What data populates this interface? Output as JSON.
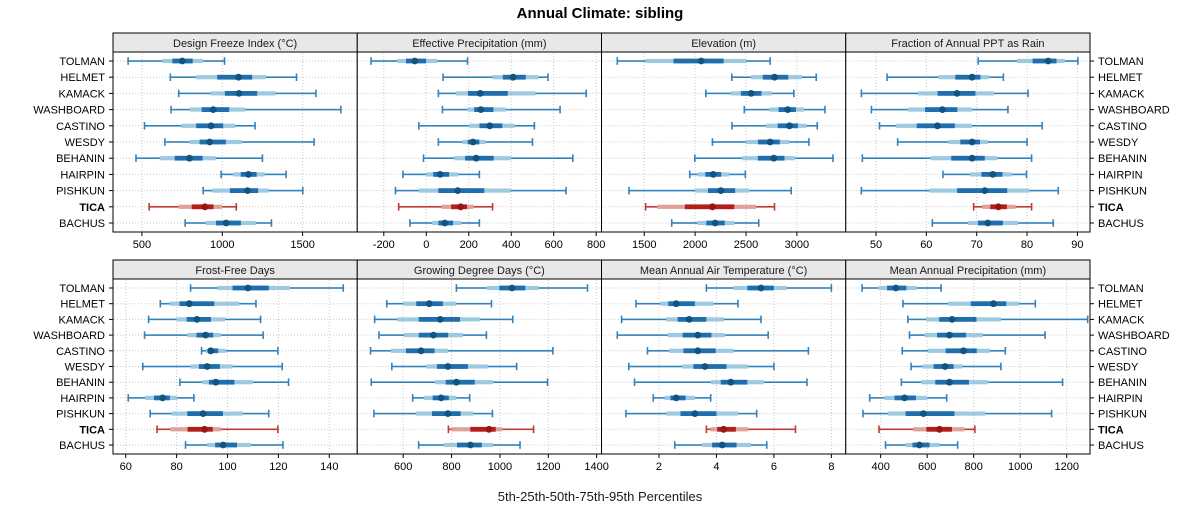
{
  "chart_data": {
    "type": "dot-interval-lattice",
    "title": "Annual Climate: sibling",
    "xlabel": "5th-25th-50th-75th-95th Percentiles",
    "percentiles": [
      5,
      25,
      50,
      75,
      95
    ],
    "legend_position": "none",
    "grid": "dotted",
    "sites": [
      "TOLMAN",
      "HELMET",
      "KAMACK",
      "WASHBOARD",
      "CASTINO",
      "WESDY",
      "BEHANIN",
      "HAIRPIN",
      "PISHKUN",
      "TICA",
      "BACHUS"
    ],
    "highlight_site": "TICA",
    "colors": {
      "blue_whisker": "#3182bd",
      "blue_light": "#9ecae1",
      "blue_bar": "#1f6fae",
      "blue_dot": "#14537e",
      "red_whisker": "#bf3a30",
      "red_light": "#dfa29b",
      "red_bar": "#b01f1a",
      "red_dot": "#991511",
      "strip_bg": "#e8e8e8",
      "panel_border": "#000000",
      "grid_line": "#c9c9c9",
      "text": "#000000"
    },
    "panels": [
      {
        "title": "Design Freeze Index (°C)",
        "xlim": [
          320,
          1840
        ],
        "ticks": [
          500,
          1000,
          1500
        ],
        "values": {
          "TOLMAN": [
            414,
            628,
            751,
            881,
            1014
          ],
          "HELMET": [
            677,
            836,
            1101,
            1271,
            1462
          ],
          "KAMACK": [
            729,
            929,
            1104,
            1331,
            1583
          ],
          "WASHBOARD": [
            681,
            800,
            944,
            1142,
            1738
          ],
          "CASTINO": [
            516,
            745,
            930,
            1081,
            1204
          ],
          "WESDY": [
            643,
            796,
            922,
            1122,
            1571
          ],
          "BEHANIN": [
            463,
            612,
            796,
            959,
            1250
          ],
          "HAIRPIN": [
            993,
            1067,
            1163,
            1265,
            1397
          ],
          "PISHKUN": [
            881,
            938,
            1157,
            1289,
            1501
          ],
          "TICA": [
            545,
            728,
            892,
            999,
            1087
          ],
          "BACHUS": [
            769,
            898,
            1024,
            1208,
            1306
          ]
        }
      },
      {
        "title": "Effective Precipitation (mm)",
        "xlim": [
          -325,
          825
        ],
        "ticks": [
          -200,
          0,
          200,
          400,
          600,
          800
        ],
        "values": {
          "TOLMAN": [
            -260,
            -137,
            -54,
            52,
            194
          ],
          "HELMET": [
            79,
            312,
            409,
            528,
            573
          ],
          "KAMACK": [
            57,
            139,
            254,
            513,
            753
          ],
          "WASHBOARD": [
            76,
            194,
            257,
            375,
            630
          ],
          "CASTINO": [
            -35,
            202,
            299,
            417,
            509
          ],
          "WESDY": [
            57,
            170,
            220,
            280,
            500
          ],
          "BEHANIN": [
            -13,
            131,
            235,
            400,
            690
          ],
          "HAIRPIN": [
            -110,
            0,
            65,
            150,
            250
          ],
          "PISHKUN": [
            -145,
            -35,
            148,
            398,
            658
          ],
          "TICA": [
            -130,
            72,
            162,
            222,
            312
          ],
          "BACHUS": [
            -77,
            28,
            87,
            165,
            250
          ]
        }
      },
      {
        "title": "Elevation (m)",
        "xlim": [
          1080,
          3480
        ],
        "ticks": [
          1500,
          2000,
          2500,
          3000
        ],
        "values": {
          "TOLMAN": [
            1235,
            1515,
            2060,
            2500,
            2737
          ],
          "HELMET": [
            2360,
            2550,
            2780,
            3050,
            3190
          ],
          "KAMACK": [
            2105,
            2350,
            2550,
            2753,
            2970
          ],
          "WASHBOARD": [
            2483,
            2730,
            2910,
            3070,
            3276
          ],
          "CASTINO": [
            2362,
            2697,
            2927,
            3092,
            3200
          ],
          "WESDY": [
            2170,
            2500,
            2737,
            2927,
            3118
          ],
          "BEHANIN": [
            1997,
            2460,
            2773,
            2983,
            3355
          ],
          "HAIRPIN": [
            1947,
            2023,
            2178,
            2335,
            2493
          ],
          "PISHKUN": [
            1350,
            2000,
            2253,
            2533,
            2944
          ],
          "TICA": [
            1513,
            1628,
            2170,
            2600,
            2780
          ],
          "BACHUS": [
            1770,
            2023,
            2197,
            2385,
            2625
          ]
        }
      },
      {
        "title": "Fraction of Annual PPT as Rain",
        "xlim": [
          44,
          92.5
        ],
        "ticks": [
          50,
          60,
          70,
          80,
          90
        ],
        "values": {
          "TOLMAN": [
            70.3,
            78.0,
            84.2,
            87.5,
            90.1
          ],
          "HELMET": [
            52.2,
            62.4,
            69.1,
            72.4,
            75.3
          ],
          "KAMACK": [
            47.1,
            58.4,
            66.1,
            73.4,
            80.2
          ],
          "WASHBOARD": [
            49.1,
            56.3,
            63.2,
            69.1,
            76.2
          ],
          "CASTINO": [
            50.7,
            54.0,
            62.2,
            69.1,
            83.0
          ],
          "WESDY": [
            54.3,
            64.4,
            69.1,
            72.2,
            80.0
          ],
          "BEHANIN": [
            47.3,
            60.8,
            69.1,
            74.1,
            80.9
          ],
          "HAIRPIN": [
            63.3,
            68.7,
            73.2,
            77.0,
            79.9
          ],
          "PISHKUN": [
            47.1,
            60.6,
            71.6,
            80.5,
            86.2
          ],
          "TICA": [
            69.4,
            71.1,
            74.3,
            77.7,
            80.9
          ],
          "BACHUS": [
            61.2,
            68.3,
            72.2,
            78.2,
            85.2
          ]
        }
      },
      {
        "title": "Frost-Free Days",
        "xlim": [
          55,
          151
        ],
        "ticks": [
          60,
          80,
          100,
          120,
          140
        ],
        "values": {
          "TOLMAN": [
            85.5,
            96.0,
            108.0,
            124.5,
            145.5
          ],
          "HELMET": [
            73.6,
            77.3,
            85.0,
            104.6,
            111.2
          ],
          "KAMACK": [
            69.0,
            80.0,
            88.0,
            99.0,
            113.0
          ],
          "WASHBOARD": [
            67.4,
            84.2,
            91.4,
            97.4,
            114.0
          ],
          "CASTINO": [
            89.8,
            91.4,
            93.4,
            99.3,
            119.8
          ],
          "WESDY": [
            66.7,
            85.5,
            92.0,
            102.0,
            121.5
          ],
          "BEHANIN": [
            81.3,
            90.0,
            95.4,
            110.0,
            124.0
          ],
          "HAIRPIN": [
            61.0,
            67.7,
            74.5,
            80.2,
            86.8
          ],
          "PISHKUN": [
            69.6,
            78.0,
            90.4,
            106.0,
            116.2
          ],
          "TICA": [
            72.3,
            77.6,
            91.0,
            97.4,
            119.8
          ],
          "BACHUS": [
            83.5,
            92.0,
            98.3,
            109.2,
            121.8
          ]
        }
      },
      {
        "title": "Growing Degree Days (°C)",
        "xlim": [
          410,
          1420
        ],
        "ticks": [
          600,
          800,
          1000,
          1200,
          1400
        ],
        "values": {
          "TOLMAN": [
            820,
            945,
            1050,
            1160,
            1362
          ],
          "HELMET": [
            532,
            600,
            708,
            820,
            965
          ],
          "KAMACK": [
            482,
            576,
            753,
            917,
            1053
          ],
          "WASHBOARD": [
            500,
            604,
            725,
            847,
            944
          ],
          "CASTINO": [
            465,
            549,
            674,
            785,
            1219
          ],
          "WESDY": [
            553,
            694,
            785,
            950,
            1069
          ],
          "BEHANIN": [
            468,
            732,
            820,
            972,
            1197
          ],
          "HAIRPIN": [
            639,
            687,
            757,
            820,
            875
          ],
          "PISHKUN": [
            479,
            653,
            785,
            890,
            969
          ],
          "TICA": [
            787,
            800,
            955,
            1010,
            1139
          ],
          "BACHUS": [
            664,
            767,
            878,
            972,
            1083
          ]
        }
      },
      {
        "title": "Mean Annual Air Temperature (°C)",
        "xlim": [
          0,
          8.5
        ],
        "ticks": [
          2,
          4,
          6,
          8
        ],
        "values": {
          "TOLMAN": [
            3.65,
            4.6,
            5.55,
            6.45,
            8.0
          ],
          "HELMET": [
            1.2,
            2.05,
            2.6,
            3.9,
            4.75
          ],
          "KAMACK": [
            0.7,
            2.25,
            3.05,
            4.25,
            5.55
          ],
          "WASHBOARD": [
            0.55,
            2.3,
            3.35,
            4.3,
            5.8
          ],
          "CASTINO": [
            1.6,
            2.35,
            3.35,
            4.6,
            7.2
          ],
          "WESDY": [
            0.95,
            2.8,
            3.6,
            5.1,
            6.0
          ],
          "BEHANIN": [
            1.15,
            3.8,
            4.5,
            5.65,
            7.15
          ],
          "HAIRPIN": [
            1.8,
            2.2,
            2.6,
            3.25,
            3.8
          ],
          "PISHKUN": [
            0.85,
            2.25,
            3.25,
            4.75,
            5.4
          ],
          "TICA": [
            3.65,
            3.8,
            4.25,
            5.1,
            6.75
          ],
          "BACHUS": [
            2.55,
            3.5,
            4.2,
            5.2,
            5.75
          ]
        }
      },
      {
        "title": "Mean Annual Precipitation (mm)",
        "xlim": [
          250,
          1300
        ],
        "ticks": [
          400,
          600,
          800,
          1000,
          1200
        ],
        "values": {
          "TOLMAN": [
            320,
            390,
            465,
            556,
            660
          ],
          "HELMET": [
            496,
            690,
            885,
            995,
            1065
          ],
          "KAMACK": [
            517,
            596,
            707,
            917,
            1290
          ],
          "WASHBOARD": [
            524,
            589,
            696,
            839,
            1107
          ],
          "CASTINO": [
            493,
            603,
            756,
            870,
            936
          ],
          "WESDY": [
            531,
            579,
            677,
            750,
            917
          ],
          "BEHANIN": [
            489,
            574,
            696,
            863,
            1182
          ],
          "HAIRPIN": [
            353,
            417,
            503,
            600,
            684
          ],
          "PISHKUN": [
            324,
            431,
            584,
            850,
            1135
          ],
          "TICA": [
            393,
            540,
            653,
            760,
            805
          ],
          "BACHUS": [
            421,
            507,
            567,
            653,
            731
          ]
        }
      }
    ]
  }
}
